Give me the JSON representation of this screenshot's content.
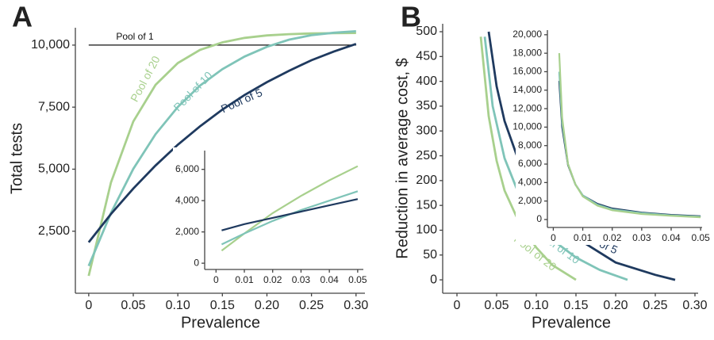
{
  "chart_data": [
    {
      "type": "line",
      "panel": "A",
      "xlabel": "Prevalence",
      "ylabel": "Total tests",
      "xlim": [
        -0.015,
        0.31
      ],
      "ylim": [
        0,
        10700
      ],
      "xticks": [
        0,
        0.05,
        {
          "value": 0.1,
          "label": "0.10"
        },
        0.15,
        {
          "value": 0.2,
          "label": "0.20"
        },
        0.25,
        {
          "value": 0.3,
          "label": "0.30"
        }
      ],
      "yticks": [
        {
          "value": 2500,
          "label": "2,500"
        },
        {
          "value": 5000,
          "label": "5,000"
        },
        {
          "value": 7500,
          "label": "7,500"
        },
        {
          "value": 10000,
          "label": "10,000"
        }
      ],
      "series": [
        {
          "name": "Pool of 1",
          "color": "#111111",
          "x": [
            0,
            0.3
          ],
          "values": [
            10000,
            10000
          ]
        },
        {
          "name": "Pool of 20",
          "color": "#a8d08d",
          "x": [
            0,
            0.025,
            0.05,
            0.075,
            0.1,
            0.125,
            0.15,
            0.175,
            0.2,
            0.225,
            0.25,
            0.275,
            0.3
          ],
          "values": [
            700,
            4470,
            6920,
            8400,
            9280,
            9810,
            10110,
            10290,
            10390,
            10440,
            10470,
            10480,
            10490
          ]
        },
        {
          "name": "Pool of 10",
          "color": "#7fc4b8",
          "x": [
            0,
            0.025,
            0.05,
            0.075,
            0.1,
            0.125,
            0.15,
            0.175,
            0.2,
            0.225,
            0.25,
            0.275,
            0.3
          ],
          "values": [
            1100,
            3240,
            5010,
            6410,
            7510,
            8370,
            9030,
            9540,
            9930,
            10220,
            10400,
            10500,
            10560
          ]
        },
        {
          "name": "Pool of 5",
          "color": "#1f3a5f",
          "x": [
            0,
            0.025,
            0.05,
            0.075,
            0.1,
            0.125,
            0.15,
            0.175,
            0.2,
            0.225,
            0.25,
            0.275,
            0.3
          ],
          "values": [
            2050,
            3195,
            4220,
            5150,
            5990,
            6730,
            7400,
            7990,
            8510,
            8970,
            9390,
            9740,
            10050
          ]
        }
      ]
    },
    {
      "type": "line",
      "xlim": [
        -0.004,
        0.052
      ],
      "ylim": [
        -400,
        7200
      ],
      "xticks": [
        0,
        0.01,
        0.02,
        0.03,
        0.04,
        0.05
      ],
      "yticks": [
        0,
        {
          "value": 2000,
          "label": "2,000"
        },
        {
          "value": 4000,
          "label": "4,000"
        },
        {
          "value": 6000,
          "label": "6,000"
        }
      ],
      "series": [
        {
          "color": "#a8d08d",
          "x": [
            0.002,
            0.01,
            0.02,
            0.03,
            0.04,
            0.05
          ],
          "values": [
            800,
            1900,
            3200,
            4300,
            5300,
            6200
          ]
        },
        {
          "color": "#7fc4b8",
          "x": [
            0.002,
            0.01,
            0.02,
            0.03,
            0.04,
            0.05
          ],
          "values": [
            1200,
            1900,
            2700,
            3400,
            4000,
            4600
          ]
        },
        {
          "color": "#1f3a5f",
          "x": [
            0.002,
            0.01,
            0.02,
            0.03,
            0.04,
            0.05
          ],
          "values": [
            2100,
            2500,
            2900,
            3300,
            3700,
            4100
          ]
        }
      ]
    },
    {
      "type": "line",
      "panel": "B",
      "xlabel": "Prevalence",
      "ylabel": "Reduction in average cost, $",
      "xlim": [
        -0.018,
        0.304
      ],
      "ylim": [
        -27,
        516
      ],
      "xticks": [
        0,
        0.05,
        {
          "value": 0.1,
          "label": "0.10"
        },
        0.15,
        {
          "value": 0.2,
          "label": "0.20"
        },
        0.25,
        {
          "value": 0.3,
          "label": "0.30"
        }
      ],
      "yticks": [
        0,
        50,
        100,
        150,
        200,
        250,
        300,
        350,
        400,
        450,
        500
      ],
      "series": [
        {
          "name": "Pool of 20",
          "color": "#a8d08d",
          "x": [
            0.03,
            0.04,
            0.05,
            0.06,
            0.08,
            0.1,
            0.12,
            0.15
          ],
          "values": [
            490,
            330,
            240,
            180,
            110,
            65,
            30,
            0
          ]
        },
        {
          "name": "Pool of 10",
          "color": "#7fc4b8",
          "x": [
            0.035,
            0.045,
            0.06,
            0.08,
            0.1,
            0.125,
            0.15,
            0.18,
            0.215
          ],
          "values": [
            490,
            350,
            245,
            165,
            115,
            75,
            45,
            20,
            0
          ]
        },
        {
          "name": "Pool of 5",
          "color": "#1f3a5f",
          "x": [
            0.04,
            0.05,
            0.06,
            0.08,
            0.1,
            0.125,
            0.15,
            0.2,
            0.25,
            0.275
          ],
          "values": [
            500,
            390,
            320,
            230,
            170,
            120,
            85,
            35,
            10,
            0
          ]
        }
      ]
    },
    {
      "type": "line",
      "xlim": [
        -0.002,
        0.0505
      ],
      "ylim": [
        -860,
        20500
      ],
      "xticks": [
        0,
        0.01,
        0.02,
        0.03,
        0.04,
        0.05
      ],
      "yticks": [
        0,
        {
          "value": 2000,
          "label": "2,000"
        },
        {
          "value": 4000,
          "label": "4,000"
        },
        {
          "value": 6000,
          "label": "6,000"
        },
        {
          "value": 8000,
          "label": "8,000"
        },
        {
          "value": 10000,
          "label": "10,000"
        },
        {
          "value": 12000,
          "label": "12,000"
        },
        {
          "value": 14000,
          "label": "14,000"
        },
        {
          "value": 16000,
          "label": "16,000"
        },
        {
          "value": 18000,
          "label": "18,000"
        },
        {
          "value": 20000,
          "label": "20,000"
        }
      ],
      "series": [
        {
          "color": "#1f3a5f",
          "x": [
            0.002,
            0.003,
            0.005,
            0.0075,
            0.01,
            0.015,
            0.02,
            0.03,
            0.04,
            0.05
          ],
          "values": [
            15000,
            10000,
            5900,
            3800,
            2600,
            1700,
            1200,
            750,
            500,
            350
          ]
        },
        {
          "color": "#7fc4b8",
          "x": [
            0.002,
            0.003,
            0.005,
            0.0075,
            0.01,
            0.015,
            0.02,
            0.03,
            0.04,
            0.05
          ],
          "values": [
            16000,
            10500,
            6000,
            3800,
            2600,
            1600,
            1100,
            700,
            450,
            300
          ]
        },
        {
          "color": "#a8d08d",
          "x": [
            0.002,
            0.003,
            0.005,
            0.0075,
            0.01,
            0.015,
            0.02,
            0.03,
            0.04,
            0.05
          ],
          "values": [
            18000,
            11000,
            6000,
            3800,
            2500,
            1500,
            1000,
            600,
            400,
            250
          ]
        }
      ]
    }
  ]
}
